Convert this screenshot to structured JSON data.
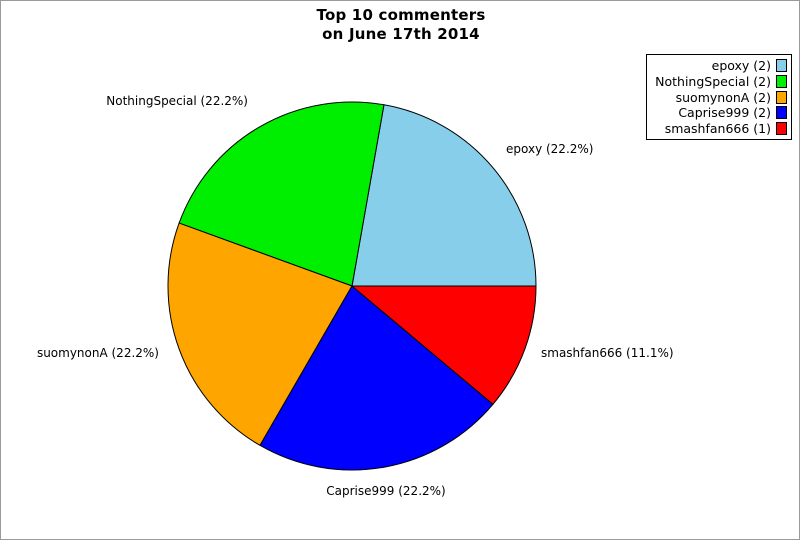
{
  "page": {
    "background": "#ffffff",
    "border_color": "#9a9a9a"
  },
  "title": {
    "line1": "Top 10 commenters",
    "line2": "on June 17th 2014"
  },
  "chart_data": {
    "type": "pie",
    "title": "Top 10 commenters on June 17th 2014",
    "categories": [
      "epoxy",
      "NothingSpecial",
      "suomynonA",
      "Caprise999",
      "smashfan666"
    ],
    "values": [
      2,
      2,
      2,
      2,
      1
    ],
    "total": 9,
    "percentages": [
      22.2,
      22.2,
      22.2,
      22.2,
      11.1
    ],
    "slice_labels": [
      "epoxy (22.2%)",
      "NothingSpecial (22.2%)",
      "suomynonA (22.2%)",
      "Caprise999 (22.2%)",
      "smashfan666 (11.1%)"
    ],
    "colors": [
      "#87CEEB",
      "#00EE00",
      "#FFA500",
      "#0000FF",
      "#FF0000"
    ],
    "stroke_color": "#000000",
    "start_angle_deg": 0,
    "direction": "counterclockwise",
    "legend": {
      "position": "top-right",
      "entries": [
        "epoxy (2)",
        "NothingSpecial (2)",
        "suomynonA (2)",
        "Caprise999 (2)",
        "smashfan666 (1)"
      ]
    }
  }
}
